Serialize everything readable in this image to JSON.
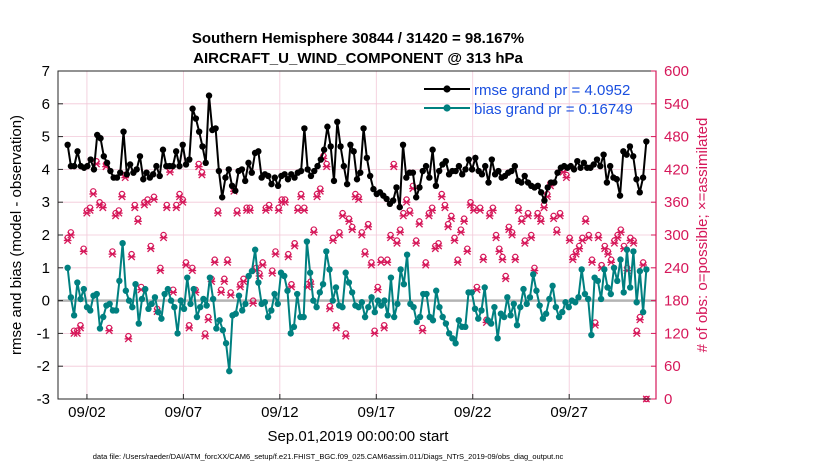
{
  "chart_data": {
    "type": "line",
    "title_line1": "Southern Hemisphere 30844 / 31420 = 98.167%",
    "title_line2": "AIRCRAFT_U_WIND_COMPONENT @ 313 hPa",
    "xlabel": "Sep.01,2019 00:00:00 start",
    "ylabel": "rmse and bias (model - observation)",
    "ylabel_right": "# of obs: o=possible; ×=assimilated",
    "footnote": "data file: /Users/raeder/DAI/ATM_forcXX/CAM6_setup/f.e21.FHIST_BGC.f09_025.CAM6assim.011/Diags_NTrS_2019-09/obs_diag_output.nc",
    "xlim": [
      0.5,
      31.5
    ],
    "ylim": [
      -3,
      7
    ],
    "ylim_right": [
      0,
      600
    ],
    "x_ticks": [
      2,
      7,
      12,
      17,
      22,
      27
    ],
    "x_tick_labels": [
      "09/02",
      "09/07",
      "09/12",
      "09/17",
      "09/22",
      "09/27"
    ],
    "y_ticks": [
      -3,
      -2,
      -1,
      0,
      1,
      2,
      3,
      4,
      5,
      6,
      7
    ],
    "y_tick_labels": [
      "-3",
      "-2",
      "-1",
      "0",
      "1",
      "2",
      "3",
      "4",
      "5",
      "6",
      "7"
    ],
    "y_right_ticks": [
      0,
      60,
      120,
      180,
      240,
      300,
      360,
      420,
      480,
      540,
      600
    ],
    "y_right_tick_labels": [
      "0",
      "60",
      "120",
      "180",
      "240",
      "300",
      "360",
      "420",
      "480",
      "540",
      "600"
    ],
    "colors": {
      "rmse": "#000000",
      "bias": "#008080",
      "obs": "#d6185a",
      "legend_text": "#1a4fe0",
      "zero_line": "#b4b4b4",
      "grid": "#f2c8d8"
    },
    "series": [
      {
        "name": "rmse",
        "legend": "rmse grand pr = 4.0952",
        "values": [
          4.75,
          4.1,
          4.1,
          4.55,
          4.1,
          4.05,
          4.1,
          4.3,
          4.0,
          5.05,
          4.95,
          4.4,
          4.2,
          3.95,
          3.75,
          3.75,
          3.9,
          5.15,
          3.85,
          4.15,
          3.9,
          4.0,
          4.4,
          3.7,
          3.9,
          3.75,
          3.85,
          4.1,
          3.8,
          4.6,
          4.1,
          4.1,
          4.1,
          4.55,
          4.1,
          4.75,
          4.15,
          4.3,
          5.85,
          5.55,
          5.15,
          4.7,
          4.2,
          6.25,
          5.2,
          5.25,
          3.95,
          3.15,
          3.75,
          4.0,
          3.5,
          3.35,
          3.95,
          4.0,
          3.65,
          4.2,
          3.9,
          4.5,
          4.55,
          3.75,
          3.85,
          3.8,
          3.55,
          3.75,
          3.5,
          3.8,
          3.85,
          3.7,
          3.85,
          3.75,
          3.9,
          3.95,
          5.25,
          4.0,
          3.8,
          3.95,
          4.1,
          4.3,
          4.6,
          5.3,
          4.7,
          3.65,
          5.45,
          4.7,
          4.1,
          3.55,
          4.75,
          4.55,
          3.7,
          3.9,
          5.25,
          4.35,
          3.8,
          3.4,
          3.25,
          3.3,
          3.2,
          3.1,
          2.95,
          3.05,
          3.45,
          2.85,
          4.75,
          3.75,
          3.9,
          3.9,
          3.15,
          3.45,
          3.95,
          4.1,
          3.75,
          4.6,
          3.5,
          3.95,
          4.15,
          4.25,
          3.85,
          3.95,
          3.95,
          4.1,
          3.85,
          4.0,
          4.3,
          4.0,
          4.35,
          3.95,
          3.85,
          4.1,
          3.6,
          4.3,
          3.85,
          3.95,
          3.75,
          3.8,
          3.9,
          3.95,
          4.1,
          3.65,
          3.6,
          3.8,
          3.6,
          3.5,
          3.45,
          3.5,
          3.3,
          3.05,
          3.45,
          3.6,
          3.6,
          3.9,
          4.05,
          4.1,
          4.05,
          4.1,
          4.0,
          4.25,
          4.05,
          4.2,
          4.05,
          4.05,
          4.15,
          4.3,
          4.1,
          4.45,
          3.6,
          4.1,
          3.75,
          3.7,
          3.2,
          4.55,
          4.45,
          4.7,
          4.4,
          3.7,
          3.3,
          3.75,
          4.85
        ]
      },
      {
        "name": "bias",
        "legend": "bias grand pr = 0.16749",
        "values": [
          1.0,
          0.1,
          -0.45,
          0.55,
          0.05,
          0.35,
          -0.2,
          -0.3,
          0.15,
          0.2,
          -0.85,
          -0.5,
          -0.15,
          -0.1,
          -0.3,
          -0.3,
          0.6,
          1.75,
          0.3,
          0.0,
          -0.2,
          0.5,
          -0.7,
          0.05,
          0.35,
          -0.25,
          -0.1,
          0.1,
          -0.35,
          -0.55,
          0.2,
          0.35,
          0.0,
          -0.2,
          -1.0,
          0.0,
          -0.25,
          0.7,
          -0.1,
          0.35,
          -0.5,
          -0.2,
          0.05,
          -0.15,
          0.7,
          0.05,
          -0.85,
          -0.6,
          -0.9,
          -1.3,
          -2.15,
          -0.45,
          -0.4,
          0.15,
          -0.3,
          -0.1,
          0.75,
          0.9,
          1.55,
          0.55,
          -0.1,
          -0.05,
          -0.5,
          -0.3,
          0.2,
          -0.1,
          0.85,
          0.75,
          0.3,
          -1.0,
          -0.8,
          0.2,
          -0.5,
          -0.5,
          1.8,
          0.85,
          0.0,
          -0.2,
          0.25,
          0.5,
          1.5,
          0.95,
          0.0,
          0.4,
          -0.15,
          -0.2,
          0.85,
          0.55,
          0.25,
          -0.15,
          -0.2,
          -0.05,
          -0.5,
          -0.2,
          0.1,
          -0.35,
          0.0,
          -0.15,
          0.0,
          -0.45,
          0.7,
          -0.5,
          -0.1,
          0.95,
          0.5,
          1.4,
          -0.1,
          -0.2,
          -0.65,
          -0.5,
          0.2,
          0.2,
          -0.5,
          -0.6,
          0.3,
          -0.2,
          -0.5,
          -0.7,
          -1.0,
          -1.15,
          -1.3,
          -0.6,
          -0.8,
          -0.8,
          0.25,
          0.25,
          -0.25,
          -0.55,
          -0.3,
          0.4,
          -0.6,
          -0.7,
          -0.2,
          -1.15,
          -0.4,
          -0.5,
          0.1,
          -0.45,
          -0.1,
          -0.75,
          -0.2,
          0.35,
          -0.1,
          0.1,
          0.8,
          0.3,
          -0.15,
          -0.55,
          -0.4,
          0.05,
          0.45,
          -0.2,
          -0.5,
          -0.35,
          -0.05,
          -0.2,
          0.0,
          -0.05,
          0.1,
          0.95,
          0.2,
          0.05,
          -1.05,
          0.7,
          0.6,
          0.05,
          0.95,
          0.4,
          0.2,
          1.0,
          0.6,
          1.25,
          0.25,
          1.55,
          0.4,
          1.5,
          -0.05,
          0.9,
          -0.35,
          0.95
        ]
      },
      {
        "name": "obs_possible",
        "values": [
          295,
          305,
          125,
          125,
          135,
          275,
          345,
          350,
          380,
          435,
          360,
          355,
          430,
          130,
          270,
          340,
          345,
          375,
          410,
          115,
          265,
          355,
          330,
          205,
          360,
          365,
          280,
          370,
          165,
          240,
          300,
          355,
          420,
          200,
          355,
          375,
          365,
          250,
          135,
          240,
          200,
          430,
          415,
          120,
          150,
          220,
          255,
          345,
          200,
          220,
          255,
          195,
          385,
          345,
          210,
          220,
          350,
          350,
          180,
          240,
          230,
          250,
          350,
          355,
          235,
          270,
          350,
          365,
          365,
          265,
          210,
          285,
          350,
          375,
          350,
          210,
          215,
          310,
          375,
          385,
          445,
          430,
          170,
          295,
          135,
          305,
          340,
          120,
          330,
          315,
          375,
          370,
          305,
          270,
          320,
          250,
          125,
          205,
          255,
          135,
          255,
          300,
          430,
          290,
          310,
          340,
          365,
          345,
          390,
          290,
          325,
          130,
          250,
          340,
          350,
          280,
          285,
          375,
          355,
          320,
          335,
          295,
          255,
          310,
          330,
          275,
          360,
          350,
          205,
          350,
          260,
          145,
          340,
          350,
          300,
          275,
          260,
          225,
          315,
          305,
          260,
          350,
          330,
          290,
          340,
          300,
          240,
          340,
          330,
          355,
          375,
          395,
          335,
          310,
          340,
          420,
          410,
          295,
          260,
          270,
          280,
          295,
          330,
          300,
          255,
          140,
          300,
          245,
          280,
          270,
          255,
          290,
          300,
          310,
          280,
          240,
          295,
          290,
          125,
          150,
          250,
          0
        ]
      },
      {
        "name": "obs_assimilated",
        "values": [
          290,
          300,
          120,
          120,
          130,
          270,
          340,
          345,
          375,
          430,
          355,
          350,
          425,
          125,
          265,
          335,
          340,
          370,
          405,
          110,
          260,
          350,
          325,
          200,
          355,
          360,
          275,
          365,
          160,
          235,
          295,
          350,
          415,
          195,
          350,
          370,
          360,
          245,
          130,
          235,
          195,
          425,
          410,
          115,
          145,
          215,
          250,
          340,
          195,
          215,
          250,
          190,
          380,
          340,
          205,
          215,
          345,
          345,
          175,
          235,
          225,
          245,
          345,
          350,
          230,
          265,
          345,
          360,
          360,
          260,
          205,
          280,
          345,
          370,
          345,
          205,
          210,
          305,
          370,
          380,
          440,
          425,
          165,
          290,
          130,
          300,
          335,
          115,
          325,
          310,
          370,
          365,
          300,
          265,
          315,
          245,
          120,
          200,
          250,
          130,
          250,
          295,
          425,
          285,
          305,
          335,
          360,
          340,
          385,
          285,
          320,
          125,
          245,
          335,
          345,
          275,
          280,
          370,
          350,
          315,
          330,
          290,
          250,
          305,
          325,
          270,
          355,
          345,
          200,
          345,
          255,
          140,
          335,
          345,
          295,
          270,
          255,
          220,
          310,
          300,
          255,
          345,
          325,
          285,
          335,
          295,
          235,
          335,
          325,
          350,
          370,
          390,
          330,
          305,
          335,
          415,
          405,
          290,
          255,
          265,
          275,
          290,
          325,
          295,
          250,
          135,
          295,
          240,
          275,
          265,
          250,
          285,
          295,
          305,
          275,
          235,
          290,
          285,
          120,
          145,
          245,
          0
        ]
      }
    ]
  }
}
